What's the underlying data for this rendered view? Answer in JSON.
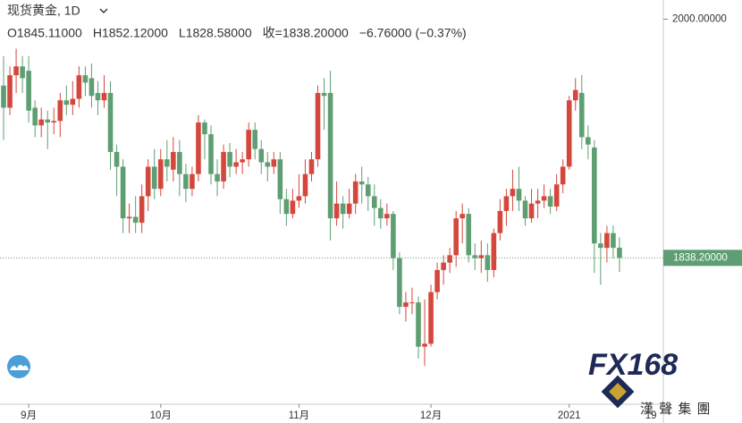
{
  "chart_data": {
    "type": "candlestick",
    "title": "现货黄金, 1D",
    "legend_values": [
      "O1845.11000",
      "H1852.12000",
      "L1828.58000",
      "收=1838.20000",
      "−6.76000 (−0.37%)"
    ],
    "categories": [
      null,
      null,
      null,
      null,
      "9月",
      null,
      null,
      null,
      null,
      null,
      null,
      null,
      null,
      null,
      null,
      null,
      null,
      null,
      null,
      null,
      null,
      null,
      null,
      null,
      null,
      "10月",
      null,
      null,
      null,
      null,
      null,
      null,
      null,
      null,
      null,
      null,
      null,
      null,
      null,
      null,
      null,
      null,
      null,
      null,
      null,
      null,
      null,
      "11月",
      null,
      null,
      null,
      null,
      null,
      null,
      null,
      null,
      null,
      null,
      null,
      null,
      null,
      null,
      null,
      null,
      null,
      null,
      null,
      null,
      "12月",
      null,
      null,
      null,
      null,
      null,
      null,
      null,
      null,
      null,
      null,
      null,
      null,
      null,
      null,
      null,
      null,
      null,
      null,
      null,
      null,
      null,
      "2021",
      null,
      null,
      null,
      null,
      null,
      null,
      null,
      null,
      null,
      null,
      null,
      null,
      "19"
    ],
    "open": [
      1955,
      1940,
      1962,
      1968,
      1965,
      1940,
      1928,
      1932,
      1930,
      1931,
      1945,
      1942,
      1946,
      1962,
      1960,
      1950,
      1945,
      1950,
      1910,
      1900,
      1865,
      1866,
      1862,
      1880,
      1900,
      1885,
      1905,
      1898,
      1910,
      1895,
      1885,
      1895,
      1930,
      1922,
      1895,
      1890,
      1910,
      1900,
      1903,
      1905,
      1925,
      1912,
      1903,
      1900,
      1905,
      1878,
      1868,
      1877,
      1880,
      1895,
      1905,
      1950,
      1950,
      1865,
      1875,
      1868,
      1875,
      1890,
      1888,
      1880,
      1872,
      1865,
      1868,
      1838,
      1805,
      1808,
      1808,
      1778,
      1780,
      1815,
      1830,
      1835,
      1840,
      1865,
      1868,
      1840,
      1838,
      1840,
      1830,
      1855,
      1870,
      1880,
      1885,
      1877,
      1865,
      1875,
      1877,
      1880,
      1873,
      1888,
      1900,
      1945,
      1950,
      1920,
      1913,
      1848,
      1845,
      1855,
      1845.11,
      null,
      null,
      null,
      null,
      null
    ],
    "high": [
      1975,
      1968,
      1980,
      1975,
      1975,
      1945,
      1940,
      1938,
      1940,
      1950,
      1955,
      1958,
      1968,
      1968,
      1970,
      1958,
      1962,
      1958,
      1915,
      1905,
      1875,
      1880,
      1888,
      1905,
      1912,
      1912,
      1918,
      1920,
      1918,
      1902,
      1900,
      1935,
      1932,
      1928,
      1905,
      1915,
      1916,
      1912,
      1910,
      1930,
      1930,
      1918,
      1910,
      1910,
      1910,
      1885,
      1885,
      1895,
      1905,
      1910,
      1955,
      1960,
      1965,
      1890,
      1880,
      1885,
      1895,
      1900,
      1893,
      1888,
      1878,
      1875,
      1870,
      1842,
      1815,
      1818,
      1812,
      1810,
      1820,
      1835,
      1840,
      1845,
      1870,
      1875,
      1872,
      1848,
      1850,
      1848,
      1858,
      1878,
      1885,
      1898,
      1900,
      1880,
      1885,
      1885,
      1888,
      1885,
      1895,
      1905,
      1948,
      1960,
      1962,
      1928,
      1918,
      1855,
      1860,
      1860,
      1852.12,
      null,
      null,
      null,
      null,
      null
    ],
    "low": [
      1918,
      1935,
      1950,
      1950,
      1930,
      1920,
      1920,
      1912,
      1922,
      1920,
      1935,
      1935,
      1940,
      1948,
      1940,
      1935,
      1940,
      1898,
      1880,
      1855,
      1855,
      1855,
      1855,
      1870,
      1878,
      1880,
      1890,
      1890,
      1880,
      1876,
      1880,
      1890,
      1905,
      1888,
      1880,
      1885,
      1893,
      1895,
      1895,
      1900,
      1905,
      1895,
      1890,
      1895,
      1868,
      1860,
      1865,
      1872,
      1875,
      1890,
      1900,
      1925,
      1850,
      1860,
      1858,
      1865,
      1868,
      1875,
      1870,
      1860,
      1858,
      1860,
      1830,
      1800,
      1795,
      1800,
      1770,
      1765,
      1778,
      1810,
      1820,
      1828,
      1832,
      1848,
      1835,
      1830,
      1828,
      1822,
      1825,
      1850,
      1860,
      1870,
      1870,
      1860,
      1862,
      1865,
      1872,
      1868,
      1870,
      1882,
      1898,
      1938,
      1912,
      1905,
      1828,
      1820,
      1835,
      1838,
      1828.58,
      null,
      null,
      null,
      null,
      null
    ],
    "close": [
      1940,
      1962,
      1968,
      1960,
      1938,
      1928,
      1932,
      1930,
      1931,
      1945,
      1942,
      1946,
      1962,
      1957,
      1948,
      1945,
      1950,
      1910,
      1900,
      1865,
      1866,
      1862,
      1880,
      1900,
      1885,
      1905,
      1900,
      1910,
      1895,
      1885,
      1895,
      1930,
      1922,
      1895,
      1890,
      1910,
      1900,
      1903,
      1905,
      1925,
      1912,
      1903,
      1900,
      1905,
      1878,
      1868,
      1877,
      1880,
      1895,
      1905,
      1950,
      1948,
      1865,
      1875,
      1868,
      1875,
      1890,
      1888,
      1880,
      1872,
      1865,
      1868,
      1838,
      1805,
      1808,
      1808,
      1778,
      1780,
      1815,
      1830,
      1835,
      1840,
      1865,
      1868,
      1840,
      1838,
      1840,
      1830,
      1855,
      1870,
      1880,
      1885,
      1877,
      1865,
      1875,
      1877,
      1880,
      1873,
      1888,
      1900,
      1945,
      1952,
      1920,
      1915,
      1848,
      1845,
      1855,
      1845,
      1838.2,
      null,
      null,
      null,
      null,
      null
    ],
    "up_color": "#d4473d",
    "down_color": "#5e9e72",
    "ylim": [
      1739,
      2013
    ],
    "yticks": [
      {
        "value": 2000,
        "label": "2000.00000"
      }
    ],
    "last_price": {
      "value": 1838.2,
      "label": "1838.20000"
    },
    "logo": "FX168",
    "logo_sub": "漢 聲 集 團"
  }
}
